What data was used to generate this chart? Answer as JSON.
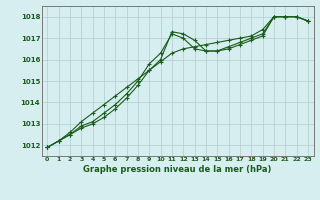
{
  "title": "Graphe pression niveau de la mer (hPa)",
  "background_color": "#d6eef0",
  "grid_color": "#b0cccc",
  "line_color": "#1a5c1a",
  "x_labels": [
    "0",
    "1",
    "2",
    "3",
    "4",
    "5",
    "6",
    "7",
    "8",
    "9",
    "10",
    "11",
    "12",
    "13",
    "14",
    "15",
    "16",
    "17",
    "18",
    "19",
    "20",
    "21",
    "22",
    "23"
  ],
  "ylim": [
    1011.5,
    1018.5
  ],
  "yticks": [
    1012,
    1013,
    1014,
    1015,
    1016,
    1017,
    1018
  ],
  "series1": [
    1011.9,
    1012.2,
    1012.5,
    1012.8,
    1013.0,
    1013.3,
    1013.7,
    1014.2,
    1014.8,
    1015.5,
    1016.0,
    1017.3,
    1017.2,
    1016.9,
    1016.4,
    1016.4,
    1016.5,
    1016.7,
    1016.9,
    1017.1,
    1018.0,
    1018.0,
    1018.0,
    1017.8
  ],
  "series2": [
    1011.9,
    1012.2,
    1012.5,
    1012.9,
    1013.1,
    1013.5,
    1013.9,
    1014.4,
    1015.0,
    1015.8,
    1016.3,
    1017.2,
    1017.0,
    1016.5,
    1016.4,
    1016.4,
    1016.6,
    1016.8,
    1017.0,
    1017.2,
    1018.0,
    1018.0,
    1018.0,
    1017.8
  ],
  "series3": [
    1011.9,
    1012.2,
    1012.6,
    1013.1,
    1013.5,
    1013.9,
    1014.3,
    1014.7,
    1015.1,
    1015.5,
    1015.9,
    1016.3,
    1016.5,
    1016.6,
    1016.7,
    1016.8,
    1016.9,
    1017.0,
    1017.1,
    1017.4,
    1018.0,
    1018.0,
    1018.0,
    1017.8
  ]
}
